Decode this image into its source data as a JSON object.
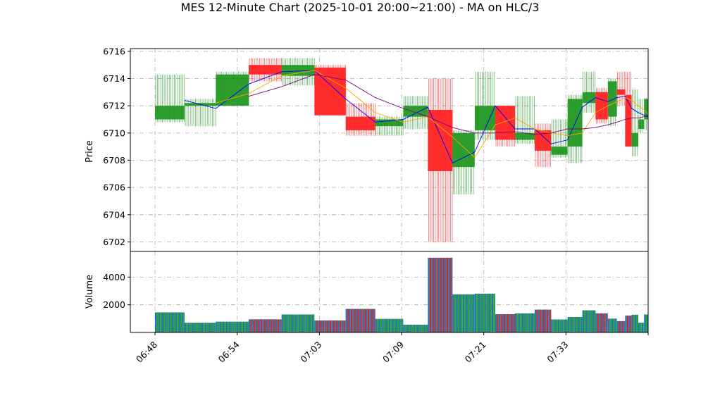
{
  "chart_data": {
    "type": "candlestick",
    "title": "MES 12-Minute Chart (2025-10-01 20:00~21:00) - MA on HLC/3",
    "price_panel": {
      "ylabel": "Price",
      "ylim": [
        6701.3,
        6716.2
      ],
      "yticks": [
        6702,
        6704,
        6706,
        6708,
        6710,
        6712,
        6714,
        6716
      ],
      "grid": true
    },
    "volume_panel": {
      "ylabel": "Volume",
      "ylim": [
        0,
        5850
      ],
      "yticks": [
        2000,
        4000
      ],
      "ytick_labels": [
        "2000",
        "4000"
      ],
      "grid": true
    },
    "x_axis": {
      "range": [
        0.0,
        63.0
      ],
      "ticks": [
        3.0,
        13.0,
        23.0,
        33.0,
        43.0,
        53.0,
        63.0
      ],
      "tick_labels": [
        "06:48",
        "06:54",
        "07:03",
        "07:09",
        "07:21",
        "07:33",
        ""
      ]
    },
    "candles": [
      {
        "x0": 3.0,
        "x1": 6.6,
        "open": 6711.0,
        "close": 6712.0,
        "high": 6714.3,
        "low": 6710.8,
        "volume": 1450
      },
      {
        "x0": 6.6,
        "x1": 10.4,
        "open": 6712.0,
        "close": 6712.2,
        "high": 6712.5,
        "low": 6710.5,
        "volume": 700
      },
      {
        "x0": 10.4,
        "x1": 14.4,
        "open": 6712.0,
        "close": 6714.3,
        "high": 6714.5,
        "low": 6712.0,
        "volume": 780
      },
      {
        "x0": 14.4,
        "x1": 18.4,
        "open": 6715.0,
        "close": 6714.3,
        "high": 6715.5,
        "low": 6713.8,
        "volume": 950
      },
      {
        "x0": 18.4,
        "x1": 22.4,
        "open": 6714.2,
        "close": 6715.0,
        "high": 6715.5,
        "low": 6713.5,
        "volume": 1300
      },
      {
        "x0": 22.4,
        "x1": 26.2,
        "open": 6714.8,
        "close": 6711.3,
        "high": 6715.0,
        "low": 6711.3,
        "volume": 870
      },
      {
        "x0": 26.2,
        "x1": 29.8,
        "open": 6711.2,
        "close": 6710.2,
        "high": 6712.2,
        "low": 6709.8,
        "volume": 1700
      },
      {
        "x0": 29.8,
        "x1": 33.2,
        "open": 6710.5,
        "close": 6711.0,
        "high": 6711.2,
        "low": 6709.8,
        "volume": 980
      },
      {
        "x0": 33.2,
        "x1": 36.2,
        "open": 6711.2,
        "close": 6712.0,
        "high": 6712.7,
        "low": 6710.3,
        "volume": 560
      },
      {
        "x0": 36.2,
        "x1": 39.2,
        "open": 6711.7,
        "close": 6707.2,
        "high": 6714.0,
        "low": 6702.0,
        "volume": 5400
      },
      {
        "x0": 39.2,
        "x1": 41.9,
        "open": 6707.5,
        "close": 6710.0,
        "high": 6710.2,
        "low": 6705.5,
        "volume": 2750
      },
      {
        "x0": 41.9,
        "x1": 44.4,
        "open": 6710.2,
        "close": 6712.0,
        "high": 6714.5,
        "low": 6709.5,
        "volume": 2800
      },
      {
        "x0": 44.4,
        "x1": 46.8,
        "open": 6712.0,
        "close": 6709.5,
        "high": 6712.0,
        "low": 6709.0,
        "volume": 1320
      },
      {
        "x0": 46.8,
        "x1": 49.2,
        "open": 6709.5,
        "close": 6710.0,
        "high": 6712.7,
        "low": 6709.2,
        "volume": 1380
      },
      {
        "x0": 49.2,
        "x1": 51.2,
        "open": 6710.2,
        "close": 6708.7,
        "high": 6710.7,
        "low": 6707.5,
        "volume": 1650
      },
      {
        "x0": 51.2,
        "x1": 53.2,
        "open": 6708.4,
        "close": 6709.0,
        "high": 6711.0,
        "low": 6708.2,
        "volume": 940
      },
      {
        "x0": 53.2,
        "x1": 55.0,
        "open": 6709.0,
        "close": 6712.5,
        "high": 6712.8,
        "low": 6707.8,
        "volume": 1120
      },
      {
        "x0": 55.0,
        "x1": 56.6,
        "open": 6712.2,
        "close": 6713.0,
        "high": 6714.5,
        "low": 6711.5,
        "volume": 1600
      },
      {
        "x0": 56.6,
        "x1": 58.1,
        "open": 6713.0,
        "close": 6711.0,
        "high": 6713.3,
        "low": 6710.7,
        "volume": 1380
      },
      {
        "x0": 58.1,
        "x1": 59.2,
        "open": 6711.2,
        "close": 6713.8,
        "high": 6714.0,
        "low": 6710.5,
        "volume": 1000
      },
      {
        "x0": 59.2,
        "x1": 60.2,
        "open": 6713.2,
        "close": 6712.8,
        "high": 6714.5,
        "low": 6712.0,
        "volume": 820
      },
      {
        "x0": 60.2,
        "x1": 61.0,
        "open": 6712.8,
        "close": 6709.0,
        "high": 6714.5,
        "low": 6709.0,
        "volume": 1220
      },
      {
        "x0": 61.0,
        "x1": 61.8,
        "open": 6709.0,
        "close": 6710.0,
        "high": 6713.2,
        "low": 6708.3,
        "volume": 1280
      },
      {
        "x0": 61.8,
        "x1": 62.5,
        "open": 6710.3,
        "close": 6711.0,
        "high": 6712.5,
        "low": 6710.0,
        "volume": 700
      },
      {
        "x0": 62.5,
        "x1": 63.0,
        "open": 6711.0,
        "close": 6712.5,
        "high": 6712.6,
        "low": 6710.2,
        "volume": 1300
      }
    ],
    "series": [
      {
        "color": "#0000ff",
        "x": [
          6.6,
          10.4,
          14.4,
          18.4,
          22.4,
          26.2,
          29.8,
          33.2,
          36.2,
          39.2,
          41.9,
          44.4,
          46.8,
          49.2,
          51.2,
          53.2,
          55.0,
          56.6,
          58.1,
          59.2,
          60.2,
          61.0,
          61.8,
          62.5,
          63.0
        ],
        "y": [
          6712.4,
          6711.8,
          6713.6,
          6714.5,
          6714.6,
          6712.5,
          6710.8,
          6711.0,
          6711.9,
          6707.8,
          6708.6,
          6712.0,
          6710.3,
          6710.3,
          6709.2,
          6709.5,
          6711.9,
          6712.6,
          6712.3,
          6712.6,
          6712.7,
          6711.8,
          6711.5,
          6711.3,
          6711.3
        ]
      },
      {
        "color": "#ffa500",
        "x": [
          10.4,
          14.4,
          18.4,
          22.4,
          26.2,
          29.8,
          33.2,
          36.2,
          39.2,
          41.9,
          44.4,
          46.8,
          49.2,
          51.2,
          53.2,
          55.0,
          56.6,
          58.1,
          59.2,
          60.2,
          61.0,
          61.8,
          62.5,
          63.0
        ],
        "y": [
          6712.2,
          6712.9,
          6714.2,
          6714.6,
          6713.3,
          6711.5,
          6710.8,
          6711.2,
          6709.7,
          6708.2,
          6710.6,
          6711.1,
          6710.3,
          6710.0,
          6709.8,
          6710.0,
          6711.5,
          6712.0,
          6712.3,
          6712.6,
          6712.4,
          6712.0,
          6711.7,
          6711.4
        ]
      },
      {
        "color": "#800080",
        "x": [
          14.4,
          18.4,
          22.4,
          26.2,
          29.8,
          33.2,
          36.2,
          39.2,
          41.9,
          44.4,
          46.8,
          49.2,
          51.2,
          53.2,
          55.0,
          56.6,
          58.1,
          59.2,
          60.2,
          61.0,
          61.8,
          62.5,
          63.0
        ],
        "y": [
          6712.7,
          6713.4,
          6714.3,
          6713.9,
          6712.6,
          6711.8,
          6711.2,
          6710.4,
          6710.0,
          6710.0,
          6710.1,
          6709.9,
          6710.0,
          6710.3,
          6710.3,
          6710.4,
          6710.6,
          6710.8,
          6711.0,
          6711.1,
          6711.1,
          6711.2,
          6711.2
        ]
      }
    ]
  }
}
